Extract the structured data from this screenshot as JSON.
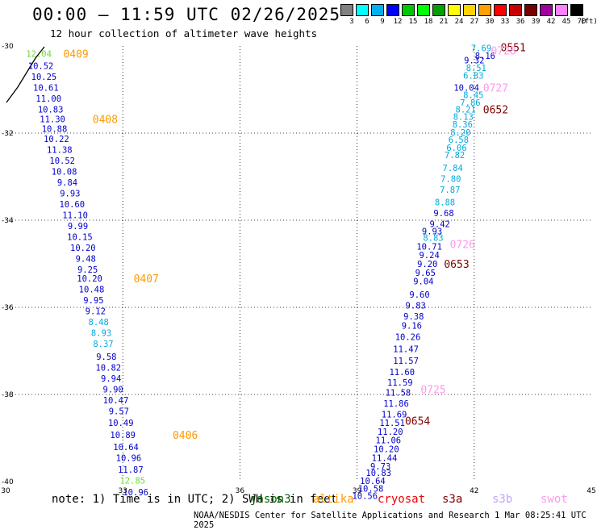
{
  "header": {
    "title": "00:00 — 11:59 UTC 02/26/2025",
    "subtitle": "12 hour collection of altimeter wave heights"
  },
  "colorbar": {
    "unit_label": "(ft)",
    "bins": [
      {
        "label": "3",
        "color": "#808080"
      },
      {
        "label": "6",
        "color": "#00ffff"
      },
      {
        "label": "9",
        "color": "#00b0f0"
      },
      {
        "label": "12",
        "color": "#0000ff"
      },
      {
        "label": "15",
        "color": "#00c800"
      },
      {
        "label": "18",
        "color": "#00ff00"
      },
      {
        "label": "21",
        "color": "#00a000"
      },
      {
        "label": "24",
        "color": "#ffff00"
      },
      {
        "label": "27",
        "color": "#ffd200"
      },
      {
        "label": "30",
        "color": "#ffa000"
      },
      {
        "label": "33",
        "color": "#ff0000"
      },
      {
        "label": "36",
        "color": "#c80000"
      },
      {
        "label": "39",
        "color": "#780000"
      },
      {
        "label": "42",
        "color": "#a000a0"
      },
      {
        "label": "45",
        "color": "#ff80ff"
      },
      {
        "label": "70",
        "color": "#000000"
      }
    ]
  },
  "axes": {
    "x_ticks": [
      "30",
      "33",
      "36",
      "39",
      "42",
      "45"
    ],
    "y_ticks": [
      "-30",
      "-32",
      "-34",
      "-36",
      "-38",
      "-40"
    ]
  },
  "track_colors": {
    "blue": "#0000cc",
    "cyan": "#00aadd",
    "green": "#66dd33",
    "orange": "#ff9900",
    "maroon": "#800000",
    "pink": "#ff99ee"
  },
  "tracks": [
    {
      "name": "track-west",
      "marks": [
        {
          "v": "12.04",
          "lon": 30.85,
          "lat": -30.18,
          "c": "green"
        },
        {
          "v": "10.52",
          "lon": 30.9,
          "lat": -30.45,
          "c": "blue"
        },
        {
          "v": "10.25",
          "lon": 30.98,
          "lat": -30.7,
          "c": "blue"
        },
        {
          "v": "10.61",
          "lon": 31.03,
          "lat": -30.95,
          "c": "blue"
        },
        {
          "v": "11.00",
          "lon": 31.1,
          "lat": -31.2,
          "c": "blue"
        },
        {
          "v": "10.83",
          "lon": 31.15,
          "lat": -31.45,
          "c": "blue"
        },
        {
          "v": "11.30",
          "lon": 31.2,
          "lat": -31.68,
          "c": "blue"
        },
        {
          "v": "10.88",
          "lon": 31.25,
          "lat": -31.9,
          "c": "blue"
        },
        {
          "v": "10.22",
          "lon": 31.3,
          "lat": -32.13,
          "c": "blue"
        },
        {
          "v": "11.38",
          "lon": 31.38,
          "lat": -32.38,
          "c": "blue"
        },
        {
          "v": "10.52",
          "lon": 31.45,
          "lat": -32.63,
          "c": "blue"
        },
        {
          "v": "10.08",
          "lon": 31.5,
          "lat": -32.88,
          "c": "blue"
        },
        {
          "v": "9.84",
          "lon": 31.58,
          "lat": -33.13,
          "c": "blue"
        },
        {
          "v": "9.93",
          "lon": 31.65,
          "lat": -33.38,
          "c": "blue"
        },
        {
          "v": "10.60",
          "lon": 31.7,
          "lat": -33.63,
          "c": "blue"
        },
        {
          "v": "11.10",
          "lon": 31.78,
          "lat": -33.88,
          "c": "blue"
        },
        {
          "v": "9.99",
          "lon": 31.85,
          "lat": -34.13,
          "c": "blue"
        },
        {
          "v": "10.15",
          "lon": 31.9,
          "lat": -34.38,
          "c": "blue"
        },
        {
          "v": "10.20",
          "lon": 31.98,
          "lat": -34.63,
          "c": "blue"
        },
        {
          "v": "9.48",
          "lon": 32.05,
          "lat": -34.88,
          "c": "blue"
        },
        {
          "v": "9.25",
          "lon": 32.1,
          "lat": -35.13,
          "c": "blue"
        },
        {
          "v": "10.20",
          "lon": 32.15,
          "lat": -35.33,
          "c": "blue"
        },
        {
          "v": "10.48",
          "lon": 32.2,
          "lat": -35.58,
          "c": "blue"
        },
        {
          "v": "9.95",
          "lon": 32.25,
          "lat": -35.83,
          "c": "blue"
        },
        {
          "v": "9.12",
          "lon": 32.3,
          "lat": -36.08,
          "c": "blue"
        },
        {
          "v": "8.48",
          "lon": 32.38,
          "lat": -36.33,
          "c": "cyan"
        },
        {
          "v": "8.93",
          "lon": 32.45,
          "lat": -36.58,
          "c": "cyan"
        },
        {
          "v": "8.37",
          "lon": 32.5,
          "lat": -36.83,
          "c": "cyan"
        },
        {
          "v": "9.58",
          "lon": 32.58,
          "lat": -37.13,
          "c": "blue"
        },
        {
          "v": "10.82",
          "lon": 32.63,
          "lat": -37.38,
          "c": "blue"
        },
        {
          "v": "9.94",
          "lon": 32.7,
          "lat": -37.63,
          "c": "blue"
        },
        {
          "v": "9.90",
          "lon": 32.75,
          "lat": -37.88,
          "c": "blue"
        },
        {
          "v": "10.47",
          "lon": 32.82,
          "lat": -38.13,
          "c": "blue"
        },
        {
          "v": "9.57",
          "lon": 32.9,
          "lat": -38.38,
          "c": "blue"
        },
        {
          "v": "10.49",
          "lon": 32.95,
          "lat": -38.65,
          "c": "blue"
        },
        {
          "v": "10.89",
          "lon": 33.0,
          "lat": -38.93,
          "c": "blue"
        },
        {
          "v": "10.64",
          "lon": 33.08,
          "lat": -39.2,
          "c": "blue"
        },
        {
          "v": "10.96",
          "lon": 33.15,
          "lat": -39.45,
          "c": "blue"
        },
        {
          "v": "11.87",
          "lon": 33.2,
          "lat": -39.72,
          "c": "blue"
        },
        {
          "v": "12.85",
          "lon": 33.25,
          "lat": -39.97,
          "c": "green"
        },
        {
          "v": "10.96",
          "lon": 33.33,
          "lat": -40.24,
          "c": "blue"
        }
      ]
    },
    {
      "name": "track-east",
      "marks": [
        {
          "v": "7.69",
          "lon": 42.18,
          "lat": -30.05,
          "c": "cyan"
        },
        {
          "v": "8.16",
          "lon": 42.28,
          "lat": -30.22,
          "c": "blue"
        },
        {
          "v": "9.32",
          "lon": 42.0,
          "lat": -30.32,
          "c": "blue"
        },
        {
          "v": "8.51",
          "lon": 42.05,
          "lat": -30.5,
          "c": "cyan"
        },
        {
          "v": "6.83",
          "lon": 41.98,
          "lat": -30.68,
          "c": "cyan"
        },
        {
          "v": "10.04",
          "lon": 41.8,
          "lat": -30.95,
          "c": "blue"
        },
        {
          "v": "8.45",
          "lon": 41.98,
          "lat": -31.12,
          "c": "cyan"
        },
        {
          "v": "7.86",
          "lon": 41.9,
          "lat": -31.3,
          "c": "cyan"
        },
        {
          "v": "8.21",
          "lon": 41.78,
          "lat": -31.45,
          "c": "cyan"
        },
        {
          "v": "8.13",
          "lon": 41.72,
          "lat": -31.62,
          "c": "cyan"
        },
        {
          "v": "8.36",
          "lon": 41.7,
          "lat": -31.8,
          "c": "cyan"
        },
        {
          "v": "8.20",
          "lon": 41.65,
          "lat": -31.98,
          "c": "cyan"
        },
        {
          "v": "6.58",
          "lon": 41.6,
          "lat": -32.15,
          "c": "cyan"
        },
        {
          "v": "6.06",
          "lon": 41.55,
          "lat": -32.33,
          "c": "cyan"
        },
        {
          "v": "7.82",
          "lon": 41.5,
          "lat": -32.5,
          "c": "cyan"
        },
        {
          "v": "7.84",
          "lon": 41.45,
          "lat": -32.8,
          "c": "cyan"
        },
        {
          "v": "7.80",
          "lon": 41.4,
          "lat": -33.05,
          "c": "cyan"
        },
        {
          "v": "7.87",
          "lon": 41.38,
          "lat": -33.3,
          "c": "cyan"
        },
        {
          "v": "8.88",
          "lon": 41.25,
          "lat": -33.58,
          "c": "cyan"
        },
        {
          "v": "9.68",
          "lon": 41.22,
          "lat": -33.83,
          "c": "blue"
        },
        {
          "v": "9.42",
          "lon": 41.12,
          "lat": -34.08,
          "c": "blue"
        },
        {
          "v": "9.93",
          "lon": 40.92,
          "lat": -34.25,
          "c": "blue"
        },
        {
          "v": "8.83",
          "lon": 40.95,
          "lat": -34.4,
          "c": "cyan"
        },
        {
          "v": "10.71",
          "lon": 40.85,
          "lat": -34.6,
          "c": "blue"
        },
        {
          "v": "9.24",
          "lon": 40.85,
          "lat": -34.8,
          "c": "blue"
        },
        {
          "v": "9.20",
          "lon": 40.8,
          "lat": -35.0,
          "c": "blue"
        },
        {
          "v": "9.65",
          "lon": 40.75,
          "lat": -35.2,
          "c": "blue"
        },
        {
          "v": "9.04",
          "lon": 40.7,
          "lat": -35.4,
          "c": "blue"
        },
        {
          "v": "9.60",
          "lon": 40.6,
          "lat": -35.7,
          "c": "blue"
        },
        {
          "v": "9.83",
          "lon": 40.5,
          "lat": -35.95,
          "c": "blue"
        },
        {
          "v": "9.38",
          "lon": 40.45,
          "lat": -36.2,
          "c": "blue"
        },
        {
          "v": "9.16",
          "lon": 40.4,
          "lat": -36.42,
          "c": "blue"
        },
        {
          "v": "10.26",
          "lon": 40.3,
          "lat": -36.68,
          "c": "blue"
        },
        {
          "v": "11.47",
          "lon": 40.25,
          "lat": -36.95,
          "c": "blue"
        },
        {
          "v": "11.57",
          "lon": 40.25,
          "lat": -37.22,
          "c": "blue"
        },
        {
          "v": "11.60",
          "lon": 40.15,
          "lat": -37.48,
          "c": "blue"
        },
        {
          "v": "11.59",
          "lon": 40.1,
          "lat": -37.72,
          "c": "blue"
        },
        {
          "v": "11.58",
          "lon": 40.05,
          "lat": -37.95,
          "c": "blue"
        },
        {
          "v": "11.86",
          "lon": 40.0,
          "lat": -38.2,
          "c": "blue"
        },
        {
          "v": "11.69",
          "lon": 39.95,
          "lat": -38.45,
          "c": "blue"
        },
        {
          "v": "11.51",
          "lon": 39.9,
          "lat": -38.65,
          "c": "blue"
        },
        {
          "v": "11.20",
          "lon": 39.85,
          "lat": -38.85,
          "c": "blue"
        },
        {
          "v": "11.06",
          "lon": 39.8,
          "lat": -39.05,
          "c": "blue"
        },
        {
          "v": "10.20",
          "lon": 39.75,
          "lat": -39.25,
          "c": "blue"
        },
        {
          "v": "11.44",
          "lon": 39.7,
          "lat": -39.45,
          "c": "blue"
        },
        {
          "v": "9.73",
          "lon": 39.6,
          "lat": -39.65,
          "c": "blue"
        },
        {
          "v": "10.83",
          "lon": 39.55,
          "lat": -39.8,
          "c": "blue"
        },
        {
          "v": "10.64",
          "lon": 39.4,
          "lat": -39.98,
          "c": "blue"
        },
        {
          "v": "10.58",
          "lon": 39.35,
          "lat": -40.16,
          "c": "blue"
        },
        {
          "v": "10.56",
          "lon": 39.2,
          "lat": -40.32,
          "c": "blue"
        }
      ]
    }
  ],
  "time_markers": [
    {
      "v": "0409",
      "lon": 31.8,
      "lat": -30.18,
      "c": "orange"
    },
    {
      "v": "0408",
      "lon": 32.55,
      "lat": -31.68,
      "c": "orange"
    },
    {
      "v": "0407",
      "lon": 33.6,
      "lat": -35.33,
      "c": "orange"
    },
    {
      "v": "0406",
      "lon": 34.6,
      "lat": -38.93,
      "c": "orange"
    },
    {
      "v": "0551",
      "lon": 43.0,
      "lat": -30.03,
      "c": "maroon"
    },
    {
      "v": "0728",
      "lon": 42.75,
      "lat": -30.1,
      "c": "pink"
    },
    {
      "v": "0727",
      "lon": 42.55,
      "lat": -30.95,
      "c": "pink"
    },
    {
      "v": "0652",
      "lon": 42.55,
      "lat": -31.45,
      "c": "maroon"
    },
    {
      "v": "0726",
      "lon": 41.7,
      "lat": -34.55,
      "c": "pink"
    },
    {
      "v": "0653",
      "lon": 41.55,
      "lat": -35.0,
      "c": "maroon"
    },
    {
      "v": "0725",
      "lon": 40.95,
      "lat": -37.88,
      "c": "pink"
    },
    {
      "v": "0654",
      "lon": 40.55,
      "lat": -38.6,
      "c": "maroon"
    }
  ],
  "footer": {
    "note": "note: 1) Time is in UTC; 2) SWH is in feet",
    "satellites": [
      {
        "name": "jason3",
        "color": "#006600"
      },
      {
        "name": "altika",
        "color": "#ff9900"
      },
      {
        "name": "cryosat",
        "color": "#ee0000"
      },
      {
        "name": "s3a",
        "color": "#800000"
      },
      {
        "name": "s3b",
        "color": "#c8a0ff"
      },
      {
        "name": "swot",
        "color": "#ff99ee"
      }
    ],
    "credit": "NOAA/NESDIS Center for Satellite Applications and Research    1 Mar 08:25:41 UTC 2025"
  }
}
